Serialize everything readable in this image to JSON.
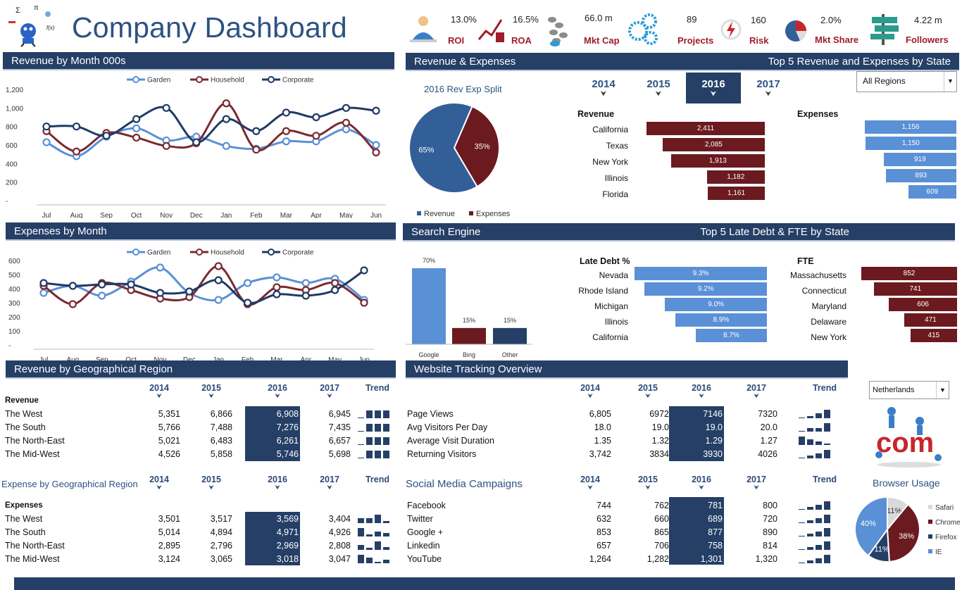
{
  "dashboard": {
    "title": "Company Dashboard"
  },
  "kpis": [
    {
      "value": "13.0%",
      "label": "ROI",
      "icon": "meditation-person-icon"
    },
    {
      "value": "16.5%",
      "label": "ROA",
      "icon": "growth-chart-icon"
    },
    {
      "value": "66.0 m",
      "label": "Mkt Cap",
      "icon": "footprints-icon"
    },
    {
      "value": "89",
      "label": "Projects",
      "icon": "gears-icon"
    },
    {
      "value": "160",
      "label": "Risk",
      "icon": "lightning-icon"
    },
    {
      "value": "2.0%",
      "label": "Mkt Share",
      "icon": "pie-icon"
    },
    {
      "value": "4.22 m",
      "label": "Followers",
      "icon": "signpost-icon"
    }
  ],
  "sections": {
    "rev_month": "Revenue by Month 000s",
    "rev_exp": "Revenue & Expenses",
    "top5_rev": "Top 5 Revenue and Expenses by State",
    "exp_month": "Expenses by Month",
    "search": "Search Engine",
    "top5_debt": "Top 5 Late Debt & FTE by State",
    "rev_geo": "Revenue by Geographical Region",
    "web_tracking": "Website Tracking Overview",
    "exp_geo": "Expense by Geographical Region",
    "social": "Social Media Campaigns",
    "browser": "Browser Usage"
  },
  "years": [
    "2014",
    "2015",
    "2016",
    "2017"
  ],
  "selected_year": "2016",
  "trend_label": "Trend",
  "regions_dropdown": "All Regions",
  "country_dropdown": "Netherlands",
  "chart_data": [
    {
      "type": "line",
      "title": "Revenue by Month 000s",
      "categories": [
        "Jul",
        "Aug",
        "Sep",
        "Oct",
        "Nov",
        "Dec",
        "Jan",
        "Feb",
        "Mar",
        "Apr",
        "May",
        "Jun"
      ],
      "ylim": [
        0,
        1200
      ],
      "yticks": [
        "-",
        "200",
        "400",
        "600",
        "800",
        "1,000",
        "1,200"
      ],
      "series": [
        {
          "name": "Garden",
          "color": "#5a90d6",
          "values": [
            630,
            480,
            690,
            780,
            650,
            690,
            590,
            560,
            640,
            640,
            770,
            600
          ]
        },
        {
          "name": "Household",
          "color": "#7a2a30",
          "values": [
            750,
            530,
            730,
            680,
            590,
            620,
            1050,
            550,
            750,
            700,
            840,
            520
          ]
        },
        {
          "name": "Corporate",
          "color": "#1f3a66",
          "values": [
            800,
            800,
            700,
            880,
            1000,
            630,
            880,
            750,
            950,
            900,
            1000,
            970
          ]
        }
      ]
    },
    {
      "type": "line",
      "title": "Expenses by Month",
      "categories": [
        "Jul",
        "Aug",
        "Sep",
        "Oct",
        "Nov",
        "Dec",
        "Jan",
        "Feb",
        "Mar",
        "Apr",
        "May",
        "Jun"
      ],
      "ylim": [
        0,
        600
      ],
      "yticks": [
        "-",
        "100",
        "200",
        "300",
        "400",
        "500",
        "600"
      ],
      "series": [
        {
          "name": "Garden",
          "color": "#5a90d6",
          "values": [
            370,
            420,
            350,
            450,
            550,
            370,
            320,
            440,
            480,
            440,
            470,
            320
          ]
        },
        {
          "name": "Household",
          "color": "#7a2a30",
          "values": [
            420,
            290,
            440,
            390,
            330,
            340,
            560,
            290,
            410,
            390,
            440,
            300
          ]
        },
        {
          "name": "Corporate",
          "color": "#1f3a66",
          "values": [
            440,
            420,
            430,
            430,
            370,
            380,
            460,
            300,
            360,
            350,
            390,
            530
          ]
        }
      ]
    },
    {
      "type": "pie",
      "title": "2016 Rev Exp Split",
      "labels": [
        "Revenue",
        "Expenses"
      ],
      "values": [
        65,
        35
      ],
      "display": [
        "65%",
        "35%"
      ],
      "colors": [
        "#335f99",
        "#6b1a1f"
      ]
    },
    {
      "type": "bar",
      "categories": [
        "Google",
        "Bing",
        "Other"
      ],
      "values": [
        70,
        15,
        15
      ],
      "display": [
        "70%",
        "15%",
        "15%"
      ],
      "colors": [
        "#5a90d6",
        "#6b1a1f",
        "#253f66"
      ]
    },
    {
      "type": "pie",
      "title": "Browser Usage",
      "labels": [
        "Safari",
        "Chrome",
        "Firefox",
        "IE"
      ],
      "values": [
        11,
        38,
        11,
        40
      ],
      "display": [
        "11%",
        "38%",
        "11%",
        "40%"
      ],
      "colors": [
        "#d9d9d9",
        "#6b1a1f",
        "#253f66",
        "#5a90d6"
      ]
    }
  ],
  "top5": {
    "revenue_title": "Revenue",
    "expenses_title": "Expenses",
    "revenue": [
      {
        "state": "California",
        "value": 2411,
        "text": "2,411"
      },
      {
        "state": "Texas",
        "value": 2085,
        "text": "2,085"
      },
      {
        "state": "New York",
        "value": 1913,
        "text": "1,913"
      },
      {
        "state": "Illinois",
        "value": 1182,
        "text": "1,182"
      },
      {
        "state": "Florida",
        "value": 1161,
        "text": "1,161"
      }
    ],
    "expenses": [
      {
        "value": 1156,
        "text": "1,156"
      },
      {
        "value": 1150,
        "text": "1,150"
      },
      {
        "value": 919,
        "text": "919"
      },
      {
        "value": 893,
        "text": "893"
      },
      {
        "value": 609,
        "text": "609"
      }
    ],
    "debt_title": "Late Debt %",
    "fte_title": "FTE",
    "debt": [
      {
        "state": "Nevada",
        "value": 9.3,
        "text": "9.3%"
      },
      {
        "state": "Rhode Island",
        "value": 9.2,
        "text": "9.2%"
      },
      {
        "state": "Michigan",
        "value": 9.0,
        "text": "9.0%"
      },
      {
        "state": "Illinois",
        "value": 8.9,
        "text": "8.9%"
      },
      {
        "state": "California",
        "value": 8.7,
        "text": "8.7%"
      }
    ],
    "fte": [
      {
        "state": "Massachusetts",
        "value": 852,
        "text": "852"
      },
      {
        "state": "Connecticut",
        "value": 741,
        "text": "741"
      },
      {
        "state": "Maryland",
        "value": 606,
        "text": "606"
      },
      {
        "state": "Delaware",
        "value": 471,
        "text": "471"
      },
      {
        "state": "New York",
        "value": 415,
        "text": "415"
      }
    ]
  },
  "rev_geo": {
    "heading": "Revenue",
    "rows": [
      {
        "name": "The West",
        "v": [
          "5,351",
          "6,866",
          "6,908",
          "6,945"
        ],
        "trend": [
          1,
          11,
          11,
          11
        ]
      },
      {
        "name": "The South",
        "v": [
          "5,766",
          "7,488",
          "7,276",
          "7,435"
        ],
        "trend": [
          1,
          11,
          11,
          11
        ]
      },
      {
        "name": "The North-East",
        "v": [
          "5,021",
          "6,483",
          "6,261",
          "6,657"
        ],
        "trend": [
          1,
          11,
          11,
          11
        ]
      },
      {
        "name": "The Mid-West",
        "v": [
          "4,526",
          "5,858",
          "5,746",
          "5,698"
        ],
        "trend": [
          1,
          11,
          11,
          11
        ]
      }
    ]
  },
  "exp_geo": {
    "heading": "Expenses",
    "rows": [
      {
        "name": "The West",
        "v": [
          "3,501",
          "3,517",
          "3,569",
          "3,404"
        ],
        "trend": [
          7,
          7,
          12,
          3
        ]
      },
      {
        "name": "The South",
        "v": [
          "5,014",
          "4,894",
          "4,971",
          "4,926"
        ],
        "trend": [
          12,
          3,
          7,
          5
        ]
      },
      {
        "name": "The North-East",
        "v": [
          "2,895",
          "2,796",
          "2,969",
          "2,808"
        ],
        "trend": [
          7,
          3,
          12,
          4
        ]
      },
      {
        "name": "The Mid-West",
        "v": [
          "3,124",
          "3,065",
          "3,018",
          "3,047"
        ],
        "trend": [
          12,
          8,
          2,
          5
        ]
      }
    ]
  },
  "web": {
    "rows": [
      {
        "name": "Page Views",
        "v": [
          "6,805",
          "6972",
          "7146",
          "7320"
        ],
        "trend": [
          1,
          3,
          7,
          12
        ]
      },
      {
        "name": "Avg Visitors Per Day",
        "v": [
          "18.0",
          "19.0",
          "19.0",
          "20.0"
        ],
        "trend": [
          1,
          5,
          5,
          12
        ]
      },
      {
        "name": "Average Visit Duration",
        "v": [
          "1.35",
          "1.32",
          "1.29",
          "1.27"
        ],
        "trend": [
          12,
          8,
          5,
          2
        ]
      },
      {
        "name": "Returning Visitors",
        "v": [
          "3,742",
          "3834",
          "3930",
          "4026"
        ],
        "trend": [
          1,
          4,
          7,
          12
        ]
      }
    ]
  },
  "social": {
    "rows": [
      {
        "name": "Facebook",
        "v": [
          "744",
          "762",
          "781",
          "800"
        ],
        "trend": [
          1,
          4,
          7,
          12
        ]
      },
      {
        "name": "Twitter",
        "v": [
          "632",
          "660",
          "689",
          "720"
        ],
        "trend": [
          1,
          4,
          7,
          12
        ]
      },
      {
        "name": "Google +",
        "v": [
          "853",
          "865",
          "877",
          "890"
        ],
        "trend": [
          1,
          4,
          7,
          12
        ]
      },
      {
        "name": "Linkedin",
        "v": [
          "657",
          "706",
          "758",
          "814"
        ],
        "trend": [
          1,
          4,
          7,
          12
        ]
      },
      {
        "name": "YouTube",
        "v": [
          "1,264",
          "1,282",
          "1,301",
          "1,320"
        ],
        "trend": [
          1,
          4,
          7,
          12
        ]
      }
    ]
  },
  "colors": {
    "navy": "#253f66",
    "blue": "#5a90d6",
    "maroon": "#6b1a1f",
    "title": "#2c5282"
  }
}
